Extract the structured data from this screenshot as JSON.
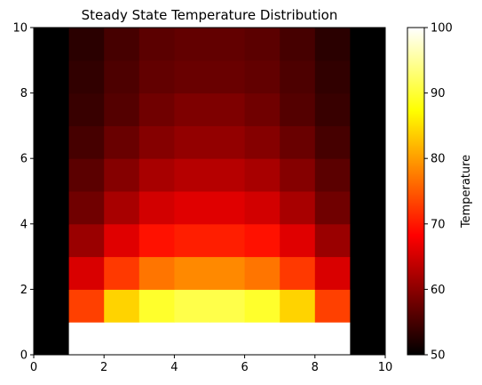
{
  "chart_data": {
    "type": "heatmap",
    "title": "Steady State Temperature Distribution",
    "xlabel": "",
    "ylabel": "",
    "xlim": [
      0,
      10
    ],
    "ylim": [
      0,
      10
    ],
    "x_ticks": [
      0,
      2,
      4,
      6,
      8,
      10
    ],
    "y_ticks": [
      0,
      2,
      4,
      6,
      8,
      10
    ],
    "grid": false,
    "colormap": "hot",
    "colorbar": {
      "label": "Temperature",
      "range": [
        50,
        100
      ],
      "ticks": [
        50,
        60,
        70,
        80,
        90,
        100
      ]
    },
    "rows_bottom_to_top": [
      [
        50,
        100,
        100,
        100,
        100,
        100,
        100,
        100,
        100,
        50
      ],
      [
        50,
        73,
        84,
        89.5,
        91,
        91,
        89.5,
        84,
        73,
        50
      ],
      [
        50,
        65.5,
        72.5,
        77,
        78.5,
        78.5,
        77,
        72.5,
        65.5,
        50
      ],
      [
        50,
        61,
        66,
        69.5,
        70.5,
        70.5,
        69.5,
        66,
        61,
        50
      ],
      [
        50,
        58,
        62,
        65,
        66,
        66,
        65,
        62,
        58,
        50
      ],
      [
        50,
        56.5,
        59.5,
        62,
        63,
        63,
        62,
        59.5,
        56.5,
        50
      ],
      [
        50,
        55,
        57.5,
        59.5,
        60.5,
        60.5,
        59.5,
        57.5,
        55,
        50
      ],
      [
        50,
        54,
        56,
        58,
        59,
        59,
        58,
        56,
        54,
        50
      ],
      [
        50,
        53.5,
        55.5,
        57,
        57.5,
        57.5,
        57,
        55.5,
        53.5,
        50
      ],
      [
        50,
        53,
        55,
        56.5,
        57,
        57,
        56.5,
        55,
        53,
        50
      ]
    ]
  }
}
